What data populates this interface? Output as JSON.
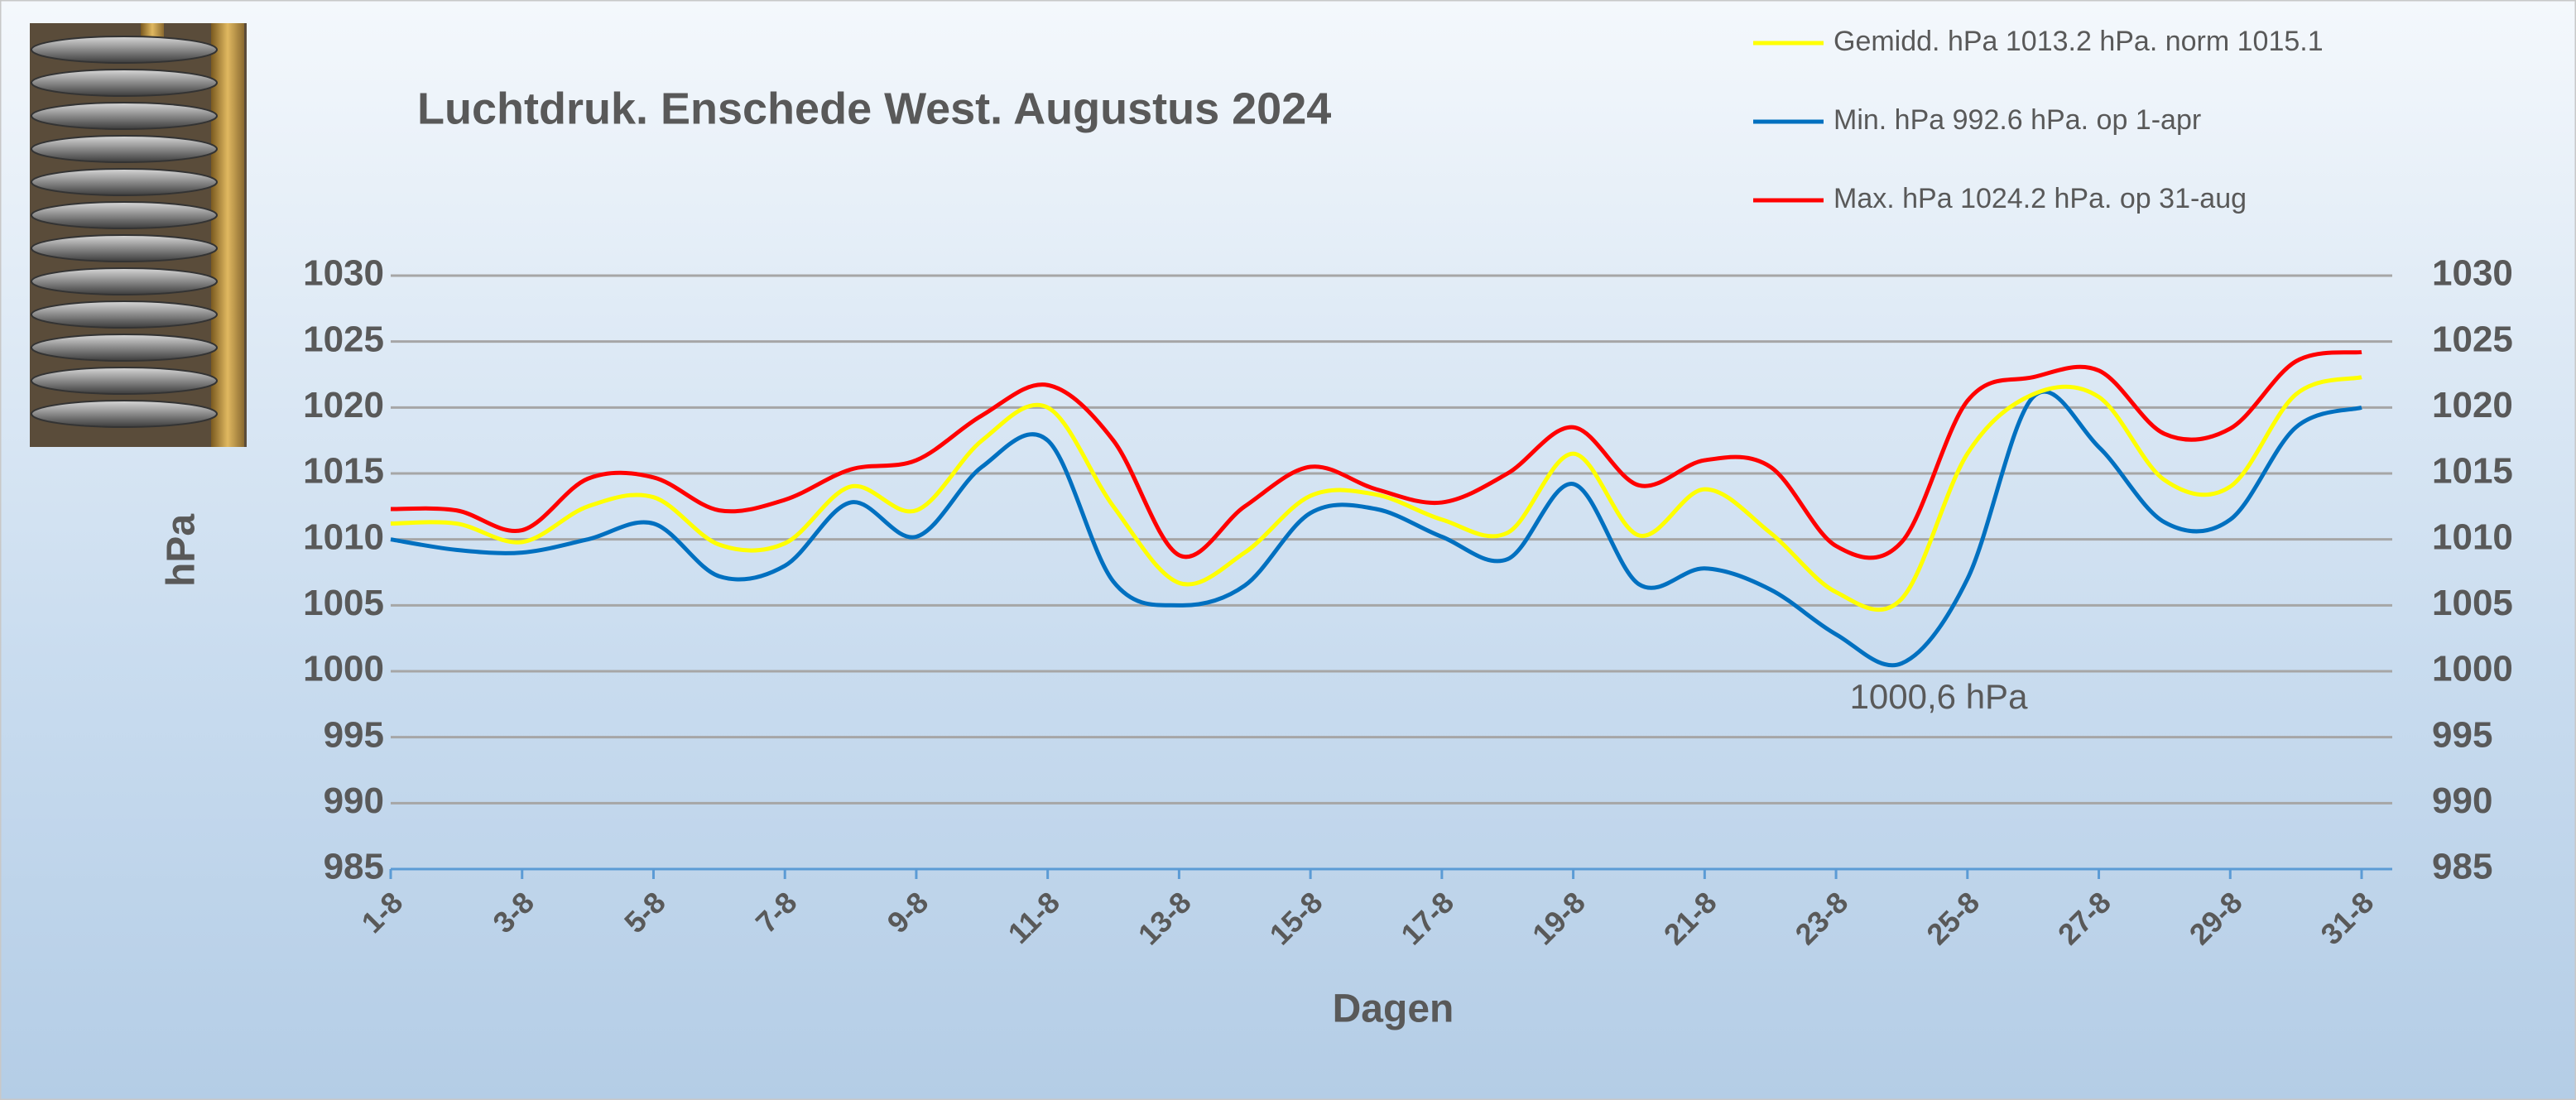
{
  "chart_data": {
    "type": "line",
    "title": "Luchtdruk. Enschede West. Augustus 2024",
    "x_label": "Dagen",
    "y_label": "hPa",
    "annotation": "1000,6 hPa",
    "categories": [
      "1-8",
      null,
      "3-8",
      null,
      "5-8",
      null,
      "7-8",
      null,
      "9-8",
      null,
      "11-8",
      null,
      "13-8",
      null,
      "15-8",
      null,
      "17-8",
      null,
      "19-8",
      null,
      "21-8",
      null,
      "23-8",
      null,
      "25-8",
      null,
      "27-8",
      null,
      "29-8",
      null,
      "31-8"
    ],
    "series": [
      {
        "name": "Gemidd. hPa 1013.2 hPa.  norm 1015.1",
        "color": "#ffff00",
        "values": [
          1011.2,
          1011.2,
          1009.8,
          1012.5,
          1013.2,
          1009.6,
          1009.7,
          1014,
          1012.2,
          1017.5,
          1020,
          1012.5,
          1006.7,
          1009,
          1013.3,
          1013.4,
          1011.5,
          1010.5,
          1016.5,
          1010.3,
          1013.8,
          1010.5,
          1006,
          1005.5,
          1016.5,
          1021,
          1020.8,
          1014.5,
          1014,
          1021,
          1022.3
        ]
      },
      {
        "name": "Min. hPa 992.6 hPa. op 1-apr",
        "color": "#0070c0",
        "values": [
          1010,
          1009.2,
          1009,
          1010,
          1011.2,
          1007.2,
          1008,
          1012.8,
          1010.2,
          1015.5,
          1017.5,
          1006.8,
          1005,
          1006.5,
          1012,
          1012.3,
          1010.2,
          1008.5,
          1014.2,
          1006.6,
          1007.8,
          1006.2,
          1002.8,
          1000.6,
          1007,
          1020.8,
          1017,
          1011.3,
          1011.5,
          1018.5,
          1020
        ]
      },
      {
        "name": "Max. hPa 1024.2 hPa.  op 31-aug",
        "color": "#ff0000",
        "values": [
          1012.3,
          1012.2,
          1010.7,
          1014.6,
          1014.7,
          1012.2,
          1013,
          1015.3,
          1016,
          1019.4,
          1021.7,
          1017.5,
          1008.8,
          1012.5,
          1015.5,
          1013.8,
          1012.8,
          1015,
          1018.5,
          1014.1,
          1016,
          1015.5,
          1009.5,
          1009.8,
          1020.5,
          1022.3,
          1022.8,
          1018,
          1018.4,
          1023.5,
          1024.2
        ]
      }
    ],
    "ylim": [
      985,
      1030
    ],
    "yticks": [
      985,
      990,
      995,
      1000,
      1005,
      1010,
      1015,
      1020,
      1025,
      1030
    ],
    "y2lim": [
      985,
      1030
    ],
    "y2ticks": [
      985,
      990,
      995,
      1000,
      1005,
      1010,
      1015,
      1020,
      1025,
      1030
    ],
    "grid": true
  }
}
